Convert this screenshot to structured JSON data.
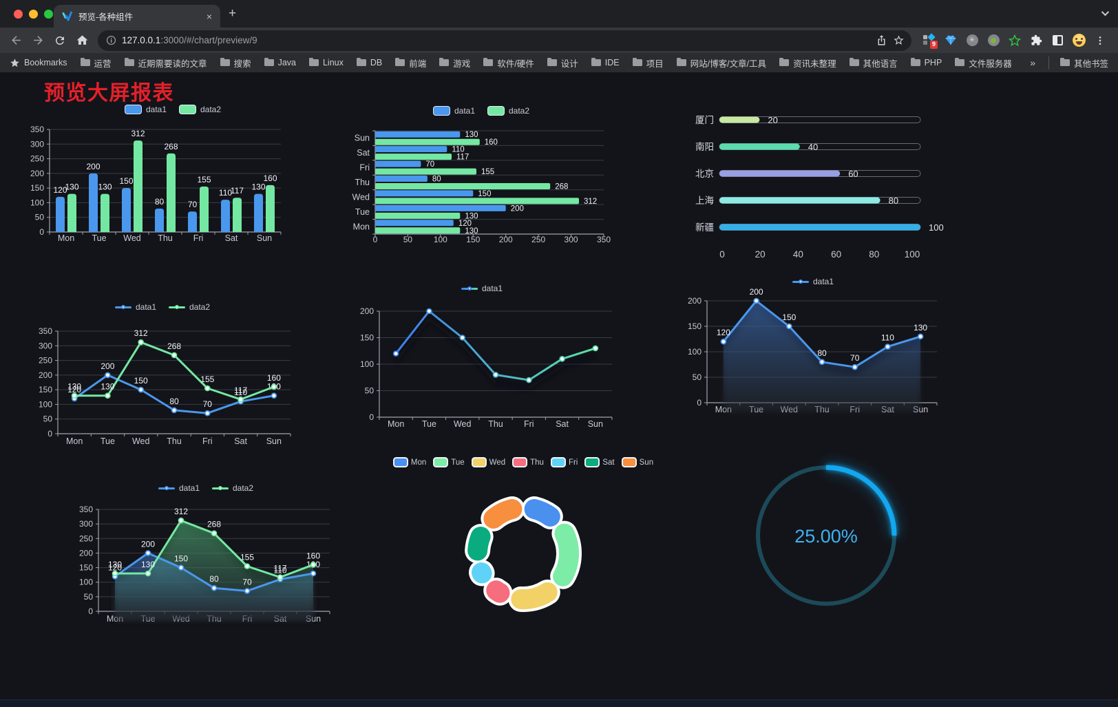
{
  "browser": {
    "tab": {
      "title": "预览-各种组件",
      "close_glyph": "×",
      "new_tab_glyph": "+"
    },
    "url": {
      "host": "127.0.0.1",
      "path": ":3000/#/chart/preview/9"
    },
    "extensions_badge": "9",
    "bookmarks": [
      "Bookmarks",
      "运营",
      "近期需要读的文章",
      "搜索",
      "Java",
      "Linux",
      "DB",
      "前端",
      "游戏",
      "软件/硬件",
      "设计",
      "IDE",
      "项目",
      "网站/博客/文章/工具",
      "资讯未整理",
      "其他语言",
      "PHP",
      "文件服务器",
      "»",
      "其他书签"
    ]
  },
  "page": {
    "title": "预览大屏报表",
    "title_color": "#e3202a"
  },
  "chart_data": [
    {
      "id": "grouped-bar",
      "type": "bar",
      "categories": [
        "Mon",
        "Tue",
        "Wed",
        "Thu",
        "Fri",
        "Sat",
        "Sun"
      ],
      "series": [
        {
          "name": "data1",
          "color": "#4a97ee",
          "values": [
            120,
            200,
            150,
            80,
            70,
            110,
            130
          ]
        },
        {
          "name": "data2",
          "color": "#74e8a3",
          "values": [
            130,
            130,
            312,
            268,
            155,
            117,
            160
          ]
        }
      ],
      "ylim": [
        0,
        350
      ],
      "ytick": 50,
      "legend": "chip",
      "labels": true
    },
    {
      "id": "horizontal-bar",
      "type": "hbar",
      "categories": [
        "Mon",
        "Tue",
        "Wed",
        "Thu",
        "Fri",
        "Sat",
        "Sun"
      ],
      "series": [
        {
          "name": "data1",
          "color": "#4a97ee",
          "values": [
            120,
            200,
            150,
            80,
            70,
            110,
            130
          ]
        },
        {
          "name": "data2",
          "color": "#74e8a3",
          "values": [
            130,
            130,
            312,
            268,
            155,
            117,
            160
          ]
        }
      ],
      "xlim": [
        0,
        350
      ],
      "xtick": 50,
      "legend": "chip",
      "labels": true
    },
    {
      "id": "progress-bars",
      "type": "progress",
      "items": [
        {
          "label": "厦门",
          "value": 20,
          "color": "#c9e8a2"
        },
        {
          "label": "南阳",
          "value": 40,
          "color": "#5bdcae"
        },
        {
          "label": "北京",
          "value": 60,
          "color": "#979ee3"
        },
        {
          "label": "上海",
          "value": 80,
          "color": "#8deae3"
        },
        {
          "label": "新疆",
          "value": 100,
          "color": "#34b0e8"
        }
      ],
      "xlim": [
        0,
        100
      ],
      "xticks": [
        0,
        20,
        40,
        60,
        80,
        100
      ]
    },
    {
      "id": "dual-line",
      "type": "line",
      "categories": [
        "Mon",
        "Tue",
        "Wed",
        "Thu",
        "Fri",
        "Sat",
        "Sun"
      ],
      "series": [
        {
          "name": "data1",
          "color": "#4a97ee",
          "values": [
            120,
            200,
            150,
            80,
            70,
            110,
            130
          ]
        },
        {
          "name": "data2",
          "color": "#74e8a3",
          "values": [
            130,
            130,
            312,
            268,
            155,
            117,
            160
          ]
        }
      ],
      "ylim": [
        0,
        350
      ],
      "ytick": 50,
      "legend": "dot",
      "labels": true
    },
    {
      "id": "gradient-line",
      "type": "line",
      "categories": [
        "Mon",
        "Tue",
        "Wed",
        "Thu",
        "Fri",
        "Sat",
        "Sun"
      ],
      "series": [
        {
          "name": "data1",
          "gradient": [
            "#3b7ff0",
            "#5ce3a6"
          ],
          "values": [
            120,
            200,
            150,
            80,
            70,
            110,
            130
          ]
        }
      ],
      "ylim": [
        0,
        200
      ],
      "ytick": 50,
      "legend": "dot",
      "labels": false,
      "shadow": true
    },
    {
      "id": "area-line",
      "type": "line",
      "categories": [
        "Mon",
        "Tue",
        "Wed",
        "Thu",
        "Fri",
        "Sat",
        "Sun"
      ],
      "series": [
        {
          "name": "data1",
          "color": "#4a97ee",
          "values": [
            120,
            200,
            150,
            80,
            70,
            110,
            130
          ],
          "area": [
            "rgba(62,118,200,0.55)",
            "rgba(62,118,200,0.02)"
          ]
        }
      ],
      "ylim": [
        0,
        200
      ],
      "ytick": 50,
      "legend": "dot",
      "labels": true,
      "areaShadow": true
    },
    {
      "id": "dual-area-line",
      "type": "line",
      "categories": [
        "Mon",
        "Tue",
        "Wed",
        "Thu",
        "Fri",
        "Sat",
        "Sun"
      ],
      "series": [
        {
          "name": "data1",
          "color": "#4a97ee",
          "values": [
            120,
            200,
            150,
            80,
            70,
            110,
            130
          ],
          "area": [
            "rgba(66,130,220,0.5)",
            "rgba(66,130,220,0.03)"
          ]
        },
        {
          "name": "data2",
          "color": "#74e8a3",
          "values": [
            130,
            130,
            312,
            268,
            155,
            117,
            160
          ],
          "area": [
            "rgba(86,200,130,0.5)",
            "rgba(86,200,130,0.03)"
          ]
        }
      ],
      "ylim": [
        0,
        350
      ],
      "ytick": 50,
      "legend": "dot",
      "labels": true,
      "areaShadow": true
    },
    {
      "id": "donut",
      "type": "donut",
      "legend": "bigchip",
      "items": [
        {
          "label": "Mon",
          "value": 120,
          "color": "#4a90ee"
        },
        {
          "label": "Tue",
          "value": 200,
          "color": "#7ceca7"
        },
        {
          "label": "Wed",
          "value": 150,
          "color": "#f2d166"
        },
        {
          "label": "Thu",
          "value": 80,
          "color": "#f66d7e"
        },
        {
          "label": "Fri",
          "value": 70,
          "color": "#5fd3f7"
        },
        {
          "label": "Sat",
          "value": 110,
          "color": "#0bab80"
        },
        {
          "label": "Sun",
          "value": 130,
          "color": "#f78f3f"
        }
      ]
    },
    {
      "id": "gauge",
      "type": "gauge",
      "value": 25,
      "label": "25.00%",
      "color": "#12a8f0",
      "track_color": "#1c4a59",
      "text_color": "#3fb2f2"
    }
  ]
}
